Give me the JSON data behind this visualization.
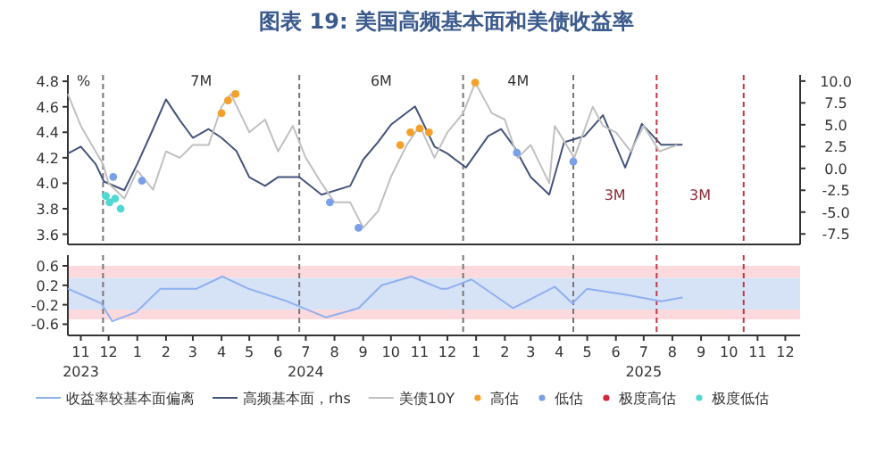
{
  "chart_data": [
    {
      "type": "line",
      "title": "图表 19: 美国高频基本面和美债收益率",
      "ylabel": "%",
      "xlim": [
        "2023-11-01",
        "2025-12-31"
      ],
      "ylim": [
        3.52,
        4.85
      ],
      "yticks": [
        3.6,
        3.8,
        {
          "value": 4,
          "label": "4.0"
        },
        4.2,
        4.4,
        4.6,
        4.8
      ],
      "y2lim": [
        -8.7,
        10.7
      ],
      "y2ticks": [
        {
          "value": -7.5,
          "label": "-7.5"
        },
        {
          "value": -5,
          "label": "-5.0"
        },
        {
          "value": -2.5,
          "label": "-2.5"
        },
        {
          "value": 0,
          "label": "0.0"
        },
        {
          "value": 2.5,
          "label": "2.5"
        },
        {
          "value": 5,
          "label": "5.0"
        },
        {
          "value": 7.5,
          "label": "7.5"
        },
        {
          "value": 10,
          "label": "10.0"
        }
      ],
      "tick_labels": "y",
      "legend": "bottom",
      "ref_lines": [
        {
          "axis": "x",
          "value": "2023-12-09",
          "color": "#777777",
          "line_style": "dashed"
        },
        {
          "axis": "x",
          "value": "2024-07-08",
          "color": "#777777",
          "line_style": "dashed"
        },
        {
          "axis": "x",
          "value": "2025-01-01",
          "color": "#777777",
          "line_style": "dashed"
        },
        {
          "axis": "x",
          "value": "2025-04-30",
          "color": "#777777",
          "line_style": "dashed"
        },
        {
          "axis": "x",
          "value": "2025-07-29",
          "color": "#c0394a",
          "line_style": "dashed"
        },
        {
          "axis": "x",
          "value": "2025-10-31",
          "color": "#c0394a",
          "line_style": "dashed"
        }
      ],
      "annotations": [
        "7M",
        "6M",
        "4M",
        "3M",
        "3M"
      ],
      "series": [
        {
          "name": "高频基本面，rhs",
          "axis": "y2",
          "color": "#44547a",
          "x": [
            "2023-11-01",
            "2023-11-15",
            "2023-12-01",
            "2023-12-10",
            "2024-01-01",
            "2024-01-15",
            "2024-02-01",
            "2024-02-15",
            "2024-03-01",
            "2024-03-15",
            "2024-04-01",
            "2024-04-15",
            "2024-05-01",
            "2024-05-15",
            "2024-06-01",
            "2024-06-15",
            "2024-07-08",
            "2024-08-01",
            "2024-09-01",
            "2024-09-15",
            "2024-10-01",
            "2024-10-15",
            "2024-11-10",
            "2024-12-01",
            "2024-12-15",
            "2025-01-04",
            "2025-01-28",
            "2025-02-11",
            "2025-02-25",
            "2025-03-15",
            "2025-04-04",
            "2025-04-20",
            "2025-05-12",
            "2025-06-01",
            "2025-06-25",
            "2025-07-13",
            "2025-08-03",
            "2025-08-26"
          ],
          "values": [
            1.7,
            2.5,
            0.5,
            -1.5,
            -2.5,
            0.5,
            4.5,
            7.9,
            5.5,
            3.5,
            4.5,
            3.5,
            2.0,
            -1.0,
            -2.0,
            -1.0,
            -1.0,
            -3.0,
            -2.0,
            1.0,
            3.0,
            5.0,
            7.1,
            2.5,
            1.7,
            0.1,
            3.7,
            4.5,
            2.5,
            -1.0,
            -3.0,
            3.0,
            3.7,
            6.1,
            0.1,
            5.1,
            2.7,
            2.7
          ]
        },
        {
          "name": "美债10Y",
          "color": "#c0c0c0",
          "x": [
            "2023-11-01",
            "2023-11-15",
            "2023-12-01",
            "2023-12-09",
            "2023-12-15",
            "2024-01-01",
            "2024-01-15",
            "2024-02-01",
            "2024-02-15",
            "2024-03-01",
            "2024-03-15",
            "2024-04-01",
            "2024-04-15",
            "2024-04-25",
            "2024-05-15",
            "2024-06-01",
            "2024-06-15",
            "2024-07-01",
            "2024-07-15",
            "2024-08-01",
            "2024-08-15",
            "2024-09-01",
            "2024-09-15",
            "2024-10-01",
            "2024-10-15",
            "2024-11-01",
            "2024-11-15",
            "2024-12-01",
            "2024-12-15",
            "2025-01-01",
            "2025-01-14",
            "2025-02-01",
            "2025-02-15",
            "2025-03-01",
            "2025-03-15",
            "2025-04-04",
            "2025-04-10",
            "2025-05-01",
            "2025-05-21",
            "2025-06-01",
            "2025-06-15",
            "2025-07-01",
            "2025-07-15",
            "2025-08-01",
            "2025-08-20"
          ],
          "values": [
            4.7,
            4.45,
            4.25,
            4.15,
            4.0,
            3.88,
            4.1,
            3.95,
            4.25,
            4.2,
            4.3,
            4.3,
            4.6,
            4.7,
            4.4,
            4.5,
            4.25,
            4.45,
            4.2,
            4.0,
            3.85,
            3.85,
            3.65,
            3.78,
            4.05,
            4.3,
            4.45,
            4.2,
            4.4,
            4.55,
            4.79,
            4.55,
            4.5,
            4.2,
            4.3,
            4.0,
            4.45,
            4.2,
            4.6,
            4.45,
            4.4,
            4.25,
            4.45,
            4.25,
            4.3
          ]
        },
        {
          "name": "高估",
          "type": "scatter",
          "color": "#f5a02a",
          "x": [
            "2024-04-15",
            "2024-04-22",
            "2024-04-30",
            "2024-10-25",
            "2024-11-05",
            "2024-11-15",
            "2024-11-25",
            "2025-01-14"
          ],
          "values": [
            4.55,
            4.65,
            4.7,
            4.3,
            4.4,
            4.43,
            4.4,
            4.79
          ]
        },
        {
          "name": "低估",
          "type": "scatter",
          "color": "#7aa0e8",
          "x": [
            "2023-12-20",
            "2024-01-20",
            "2024-08-10",
            "2024-09-10",
            "2025-02-28",
            "2025-04-30"
          ],
          "values": [
            4.05,
            4.02,
            3.85,
            3.65,
            4.24,
            4.17
          ]
        },
        {
          "name": "极度高估",
          "type": "scatter",
          "color": "#d0283c"
        },
        {
          "name": "极度低估",
          "type": "scatter",
          "color": "#4fd9d0",
          "x": [
            "2023-12-12",
            "2023-12-16",
            "2023-12-22",
            "2023-12-28"
          ],
          "values": [
            3.9,
            3.85,
            3.88,
            3.8
          ]
        }
      ]
    },
    {
      "type": "line",
      "xlim": [
        "2023-11-01",
        "2025-12-31"
      ],
      "ylim": [
        -0.83,
        0.82
      ],
      "yticks": [
        0.6,
        0.2,
        -0.2,
        -0.6
      ],
      "legend": "bottom",
      "xticks": [
        {
          "value": "2023-11-15",
          "label": "11\n2023"
        },
        {
          "value": "2023-12-15",
          "label": "12"
        },
        {
          "value": "2024-01-15",
          "label": "1"
        },
        {
          "value": "2024-02-15",
          "label": "2"
        },
        {
          "value": "2024-03-15",
          "label": "3"
        },
        {
          "value": "2024-04-15",
          "label": "4"
        },
        {
          "value": "2024-05-15",
          "label": "5"
        },
        {
          "value": "2024-06-15",
          "label": "6"
        },
        {
          "value": "2024-07-15",
          "label": "7\n2024"
        },
        {
          "value": "2024-08-15",
          "label": "8"
        },
        {
          "value": "2024-09-15",
          "label": "9"
        },
        {
          "value": "2024-10-15",
          "label": "10"
        },
        {
          "value": "2024-11-15",
          "label": "11"
        },
        {
          "value": "2024-12-15",
          "label": "12"
        },
        {
          "value": "2025-01-15",
          "label": "1"
        },
        {
          "value": "2025-02-15",
          "label": "2"
        },
        {
          "value": "2025-03-15",
          "label": "3"
        },
        {
          "value": "2025-04-15",
          "label": "4"
        },
        {
          "value": "2025-05-15",
          "label": "5"
        },
        {
          "value": "2025-06-15",
          "label": "6"
        },
        {
          "value": "2025-07-15",
          "label": "7\n2025"
        },
        {
          "value": "2025-08-15",
          "label": "8"
        },
        {
          "value": "2025-09-15",
          "label": "9"
        },
        {
          "value": "2025-10-15",
          "label": "10"
        },
        {
          "value": "2025-11-15",
          "label": "11"
        },
        {
          "value": "2025-12-15",
          "label": "12"
        }
      ],
      "bands": [
        {
          "axis": "y",
          "from": 0.35,
          "to": 0.6,
          "color": "#fbd9dd"
        },
        {
          "axis": "y",
          "from": -0.3,
          "to": 0.35,
          "color": "#d6e2f5"
        },
        {
          "axis": "y",
          "from": -0.5,
          "to": -0.3,
          "color": "#fbd9dd"
        }
      ],
      "ref_lines": [
        {
          "axis": "x",
          "value": "2023-12-09",
          "color": "#777777",
          "line_style": "dashed"
        },
        {
          "axis": "x",
          "value": "2024-07-08",
          "color": "#777777",
          "line_style": "dashed"
        },
        {
          "axis": "x",
          "value": "2025-01-01",
          "color": "#777777",
          "line_style": "dashed"
        },
        {
          "axis": "x",
          "value": "2025-04-30",
          "color": "#777777",
          "line_style": "dashed"
        },
        {
          "axis": "x",
          "value": "2025-07-29",
          "color": "#c0394a",
          "line_style": "dashed"
        },
        {
          "axis": "x",
          "value": "2025-10-31",
          "color": "#c0394a",
          "line_style": "dashed"
        }
      ],
      "series": [
        {
          "name": "收益率较基本面偏离",
          "color": "#8fb0f0",
          "x": [
            "2023-11-01",
            "2023-12-07",
            "2023-12-19",
            "2024-01-14",
            "2024-02-09",
            "2024-03-19",
            "2024-04-16",
            "2024-05-14",
            "2024-06-25",
            "2024-08-06",
            "2024-09-10",
            "2024-10-05",
            "2024-11-06",
            "2024-12-08",
            "2024-12-15",
            "2025-01-10",
            "2025-02-24",
            "2025-04-10",
            "2025-04-29",
            "2025-05-15",
            "2025-06-25",
            "2025-08-03",
            "2025-08-26"
          ],
          "values": [
            0.13,
            -0.17,
            -0.54,
            -0.35,
            0.13,
            0.13,
            0.38,
            0.13,
            -0.13,
            -0.46,
            -0.27,
            0.2,
            0.38,
            0.13,
            0.13,
            0.32,
            -0.27,
            0.17,
            -0.17,
            0.13,
            0.01,
            -0.13,
            -0.05
          ]
        }
      ]
    }
  ]
}
